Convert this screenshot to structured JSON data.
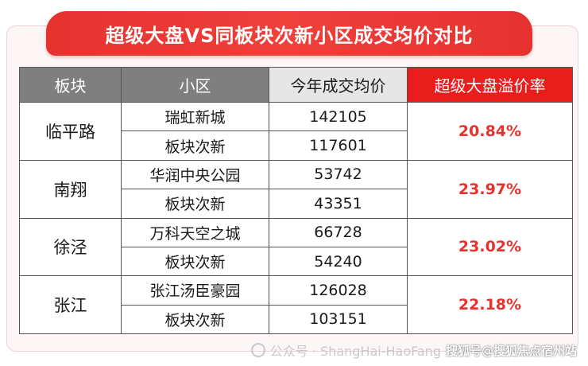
{
  "title": "超级大盘VS同板块次新小区成交均价对比",
  "headers": [
    "板块",
    "小区",
    "今年成交均价",
    "超级大盘溢价率"
  ],
  "colors": {
    "header_dark": "#7f7f7f",
    "header_light": "#e6e6e6",
    "header_red": "#ea1d1d",
    "rate_text": "#e5322f",
    "banner": "#e5322f"
  },
  "groups": [
    {
      "district": "临平路",
      "rate": "20.84%",
      "rows": [
        {
          "community": "瑞虹新城",
          "price": "142105"
        },
        {
          "community": "板块次新",
          "price": "117601"
        }
      ]
    },
    {
      "district": "南翔",
      "rate": "23.97%",
      "rows": [
        {
          "community": "华润中央公园",
          "price": "53742"
        },
        {
          "community": "板块次新",
          "price": "43351"
        }
      ]
    },
    {
      "district": "徐泾",
      "rate": "23.02%",
      "rows": [
        {
          "community": "万科天空之城",
          "price": "66728"
        },
        {
          "community": "板块次新",
          "price": "54240"
        }
      ]
    },
    {
      "district": "张江",
      "rate": "22.18%",
      "rows": [
        {
          "community": "张江汤臣豪园",
          "price": "126028"
        },
        {
          "community": "板块次新",
          "price": "103151"
        }
      ]
    }
  ],
  "watermark": {
    "account": "公众号 · ShangHai-HaoFang",
    "source": "搜狐号@搜狐焦点宿州站"
  }
}
